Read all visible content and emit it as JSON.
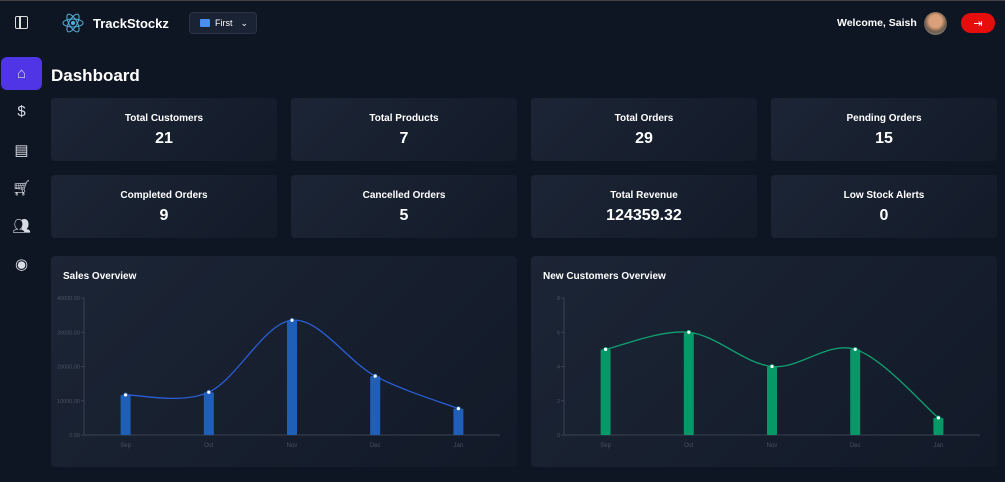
{
  "header": {
    "app_name": "TrackStockz",
    "store_selector": "First",
    "welcome": "Welcome, Saish"
  },
  "sidebar": {
    "items": [
      "home",
      "dollar",
      "archive",
      "cart",
      "users",
      "user-circle"
    ],
    "active": 0
  },
  "page_title": "Dashboard",
  "stats": [
    {
      "label": "Total Customers",
      "value": "21"
    },
    {
      "label": "Total Products",
      "value": "7"
    },
    {
      "label": "Total Orders",
      "value": "29"
    },
    {
      "label": "Pending Orders",
      "value": "15"
    },
    {
      "label": "Completed Orders",
      "value": "9"
    },
    {
      "label": "Cancelled Orders",
      "value": "5"
    },
    {
      "label": "Total Revenue",
      "value": "124359.32"
    },
    {
      "label": "Low Stock Alerts",
      "value": "0"
    }
  ],
  "colors": {
    "accent": "#4f35e6",
    "logout": "#e60d0d",
    "sales": "#1f5fb8",
    "customers": "#069867"
  },
  "chart_data": [
    {
      "type": "bar",
      "title": "Sales Overview",
      "categories": [
        "Sep",
        "Oct",
        "Nov",
        "Dec",
        "Jan"
      ],
      "values": [
        11700,
        12500,
        33500,
        17200,
        7700
      ],
      "line_overlay": true,
      "ylim": [
        0,
        40000
      ],
      "yticks": [
        "0.00",
        "10000.00",
        "20000.00",
        "30000.00",
        "40000.00"
      ],
      "color": "#1f5fb8"
    },
    {
      "type": "bar",
      "title": "New Customers Overview",
      "categories": [
        "Sep",
        "Oct",
        "Nov",
        "Dec",
        "Jan"
      ],
      "values": [
        5,
        6,
        4,
        5,
        1
      ],
      "line_overlay": true,
      "ylim": [
        0,
        8
      ],
      "yticks": [
        "0",
        "2",
        "4",
        "6",
        "8"
      ],
      "color": "#069867"
    }
  ]
}
